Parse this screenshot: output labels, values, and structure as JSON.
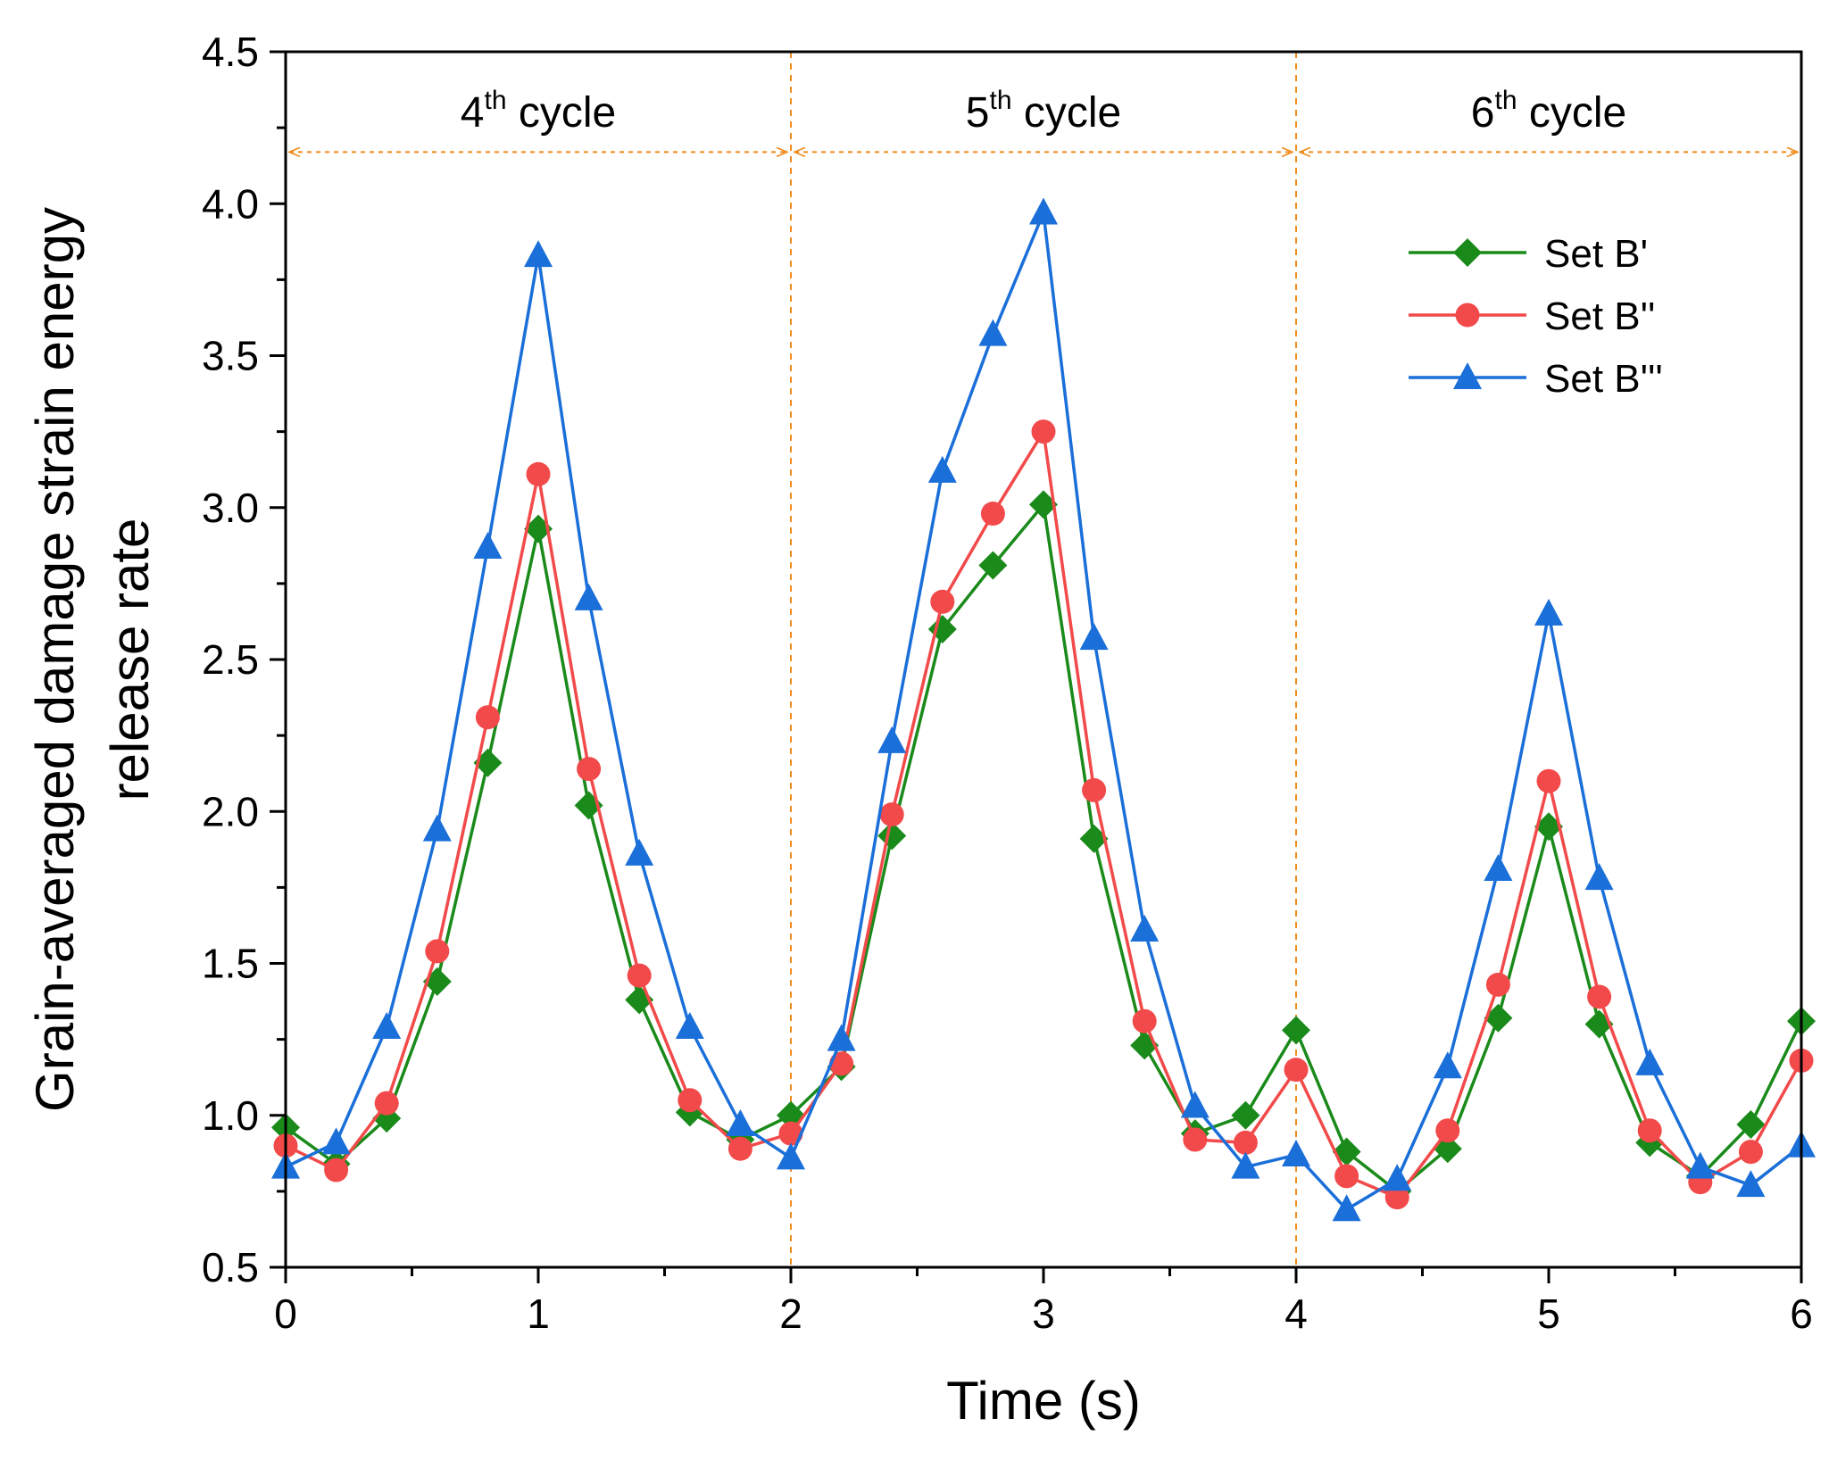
{
  "chart_data": {
    "type": "line",
    "xlabel": "Time (s)",
    "ylabel_line1": "Grain-averaged damage strain energy",
    "ylabel_line2": "release rate",
    "xlim": [
      0,
      6
    ],
    "ylim": [
      0.5,
      4.5
    ],
    "x_ticks": [
      "0",
      "1",
      "2",
      "3",
      "4",
      "5",
      "6"
    ],
    "y_ticks": [
      "0.5",
      "1.0",
      "1.5",
      "2.0",
      "2.5",
      "3.0",
      "3.5",
      "4.0",
      "4.5"
    ],
    "cycle_boundaries": [
      2,
      4
    ],
    "cycle_arrow_y": 4.17,
    "cycles": [
      {
        "ordinal": "4",
        "suffix": "th",
        "word": " cycle",
        "x_center": 1
      },
      {
        "ordinal": "5",
        "suffix": "th",
        "word": " cycle",
        "x_center": 3
      },
      {
        "ordinal": "6",
        "suffix": "th",
        "word": " cycle",
        "x_center": 5
      }
    ],
    "x": [
      0,
      0.2,
      0.4,
      0.6,
      0.8,
      1.0,
      1.2,
      1.4,
      1.6,
      1.8,
      2.0,
      2.2,
      2.4,
      2.6,
      2.8,
      3.0,
      3.2,
      3.4,
      3.6,
      3.8,
      4.0,
      4.2,
      4.4,
      4.6,
      4.8,
      5.0,
      5.2,
      5.4,
      5.6,
      5.8,
      6.0
    ],
    "series": [
      {
        "name": "Set B'",
        "color": "#1a8a1a",
        "marker": "diamond",
        "values": [
          0.96,
          0.84,
          0.99,
          1.44,
          2.16,
          2.93,
          2.02,
          1.38,
          1.01,
          0.92,
          1.0,
          1.16,
          1.92,
          2.6,
          2.81,
          3.01,
          1.91,
          1.23,
          0.94,
          1.0,
          1.28,
          0.88,
          0.75,
          0.89,
          1.32,
          1.95,
          1.3,
          0.91,
          0.8,
          0.97,
          1.31
        ]
      },
      {
        "name": "Set B''",
        "color": "#f24a4a",
        "marker": "circle",
        "values": [
          0.9,
          0.82,
          1.04,
          1.54,
          2.31,
          3.11,
          2.14,
          1.46,
          1.05,
          0.89,
          0.94,
          1.17,
          1.99,
          2.69,
          2.98,
          3.25,
          2.07,
          1.31,
          0.92,
          0.91,
          1.15,
          0.8,
          0.73,
          0.95,
          1.43,
          2.1,
          1.39,
          0.95,
          0.78,
          0.88,
          1.18
        ]
      },
      {
        "name": "Set B'''",
        "color": "#1a6fd9",
        "marker": "triangle",
        "values": [
          0.83,
          0.91,
          1.29,
          1.94,
          2.87,
          3.83,
          2.7,
          1.86,
          1.29,
          0.97,
          0.86,
          1.25,
          2.23,
          3.12,
          3.57,
          3.97,
          2.57,
          1.61,
          1.03,
          0.83,
          0.87,
          0.69,
          0.79,
          1.16,
          1.81,
          2.65,
          1.78,
          1.17,
          0.83,
          0.77,
          0.9
        ]
      }
    ],
    "legend_position": "top-right",
    "cycle_line_color": "#f08c1e"
  }
}
